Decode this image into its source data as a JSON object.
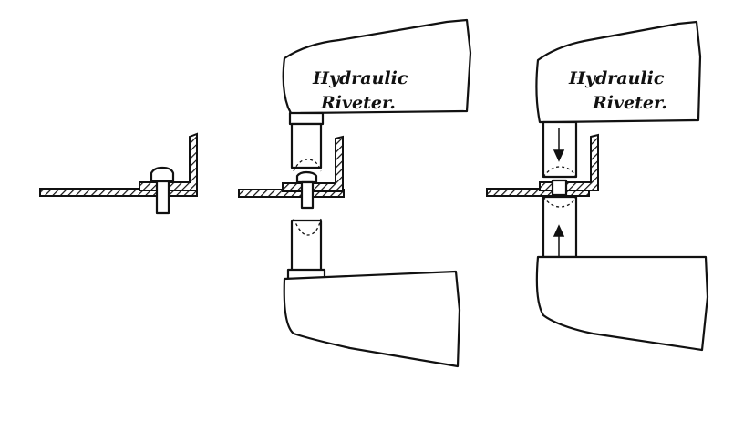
{
  "panels": [
    {
      "label_line1": "",
      "label_line2": ""
    },
    {
      "label_line1": "Hydraulic",
      "label_line2": "Riveter."
    },
    {
      "label_line1": "Hydraulic",
      "label_line2": "Riveter."
    }
  ],
  "colors": {
    "ink": "#111111",
    "paper": "#ffffff"
  }
}
